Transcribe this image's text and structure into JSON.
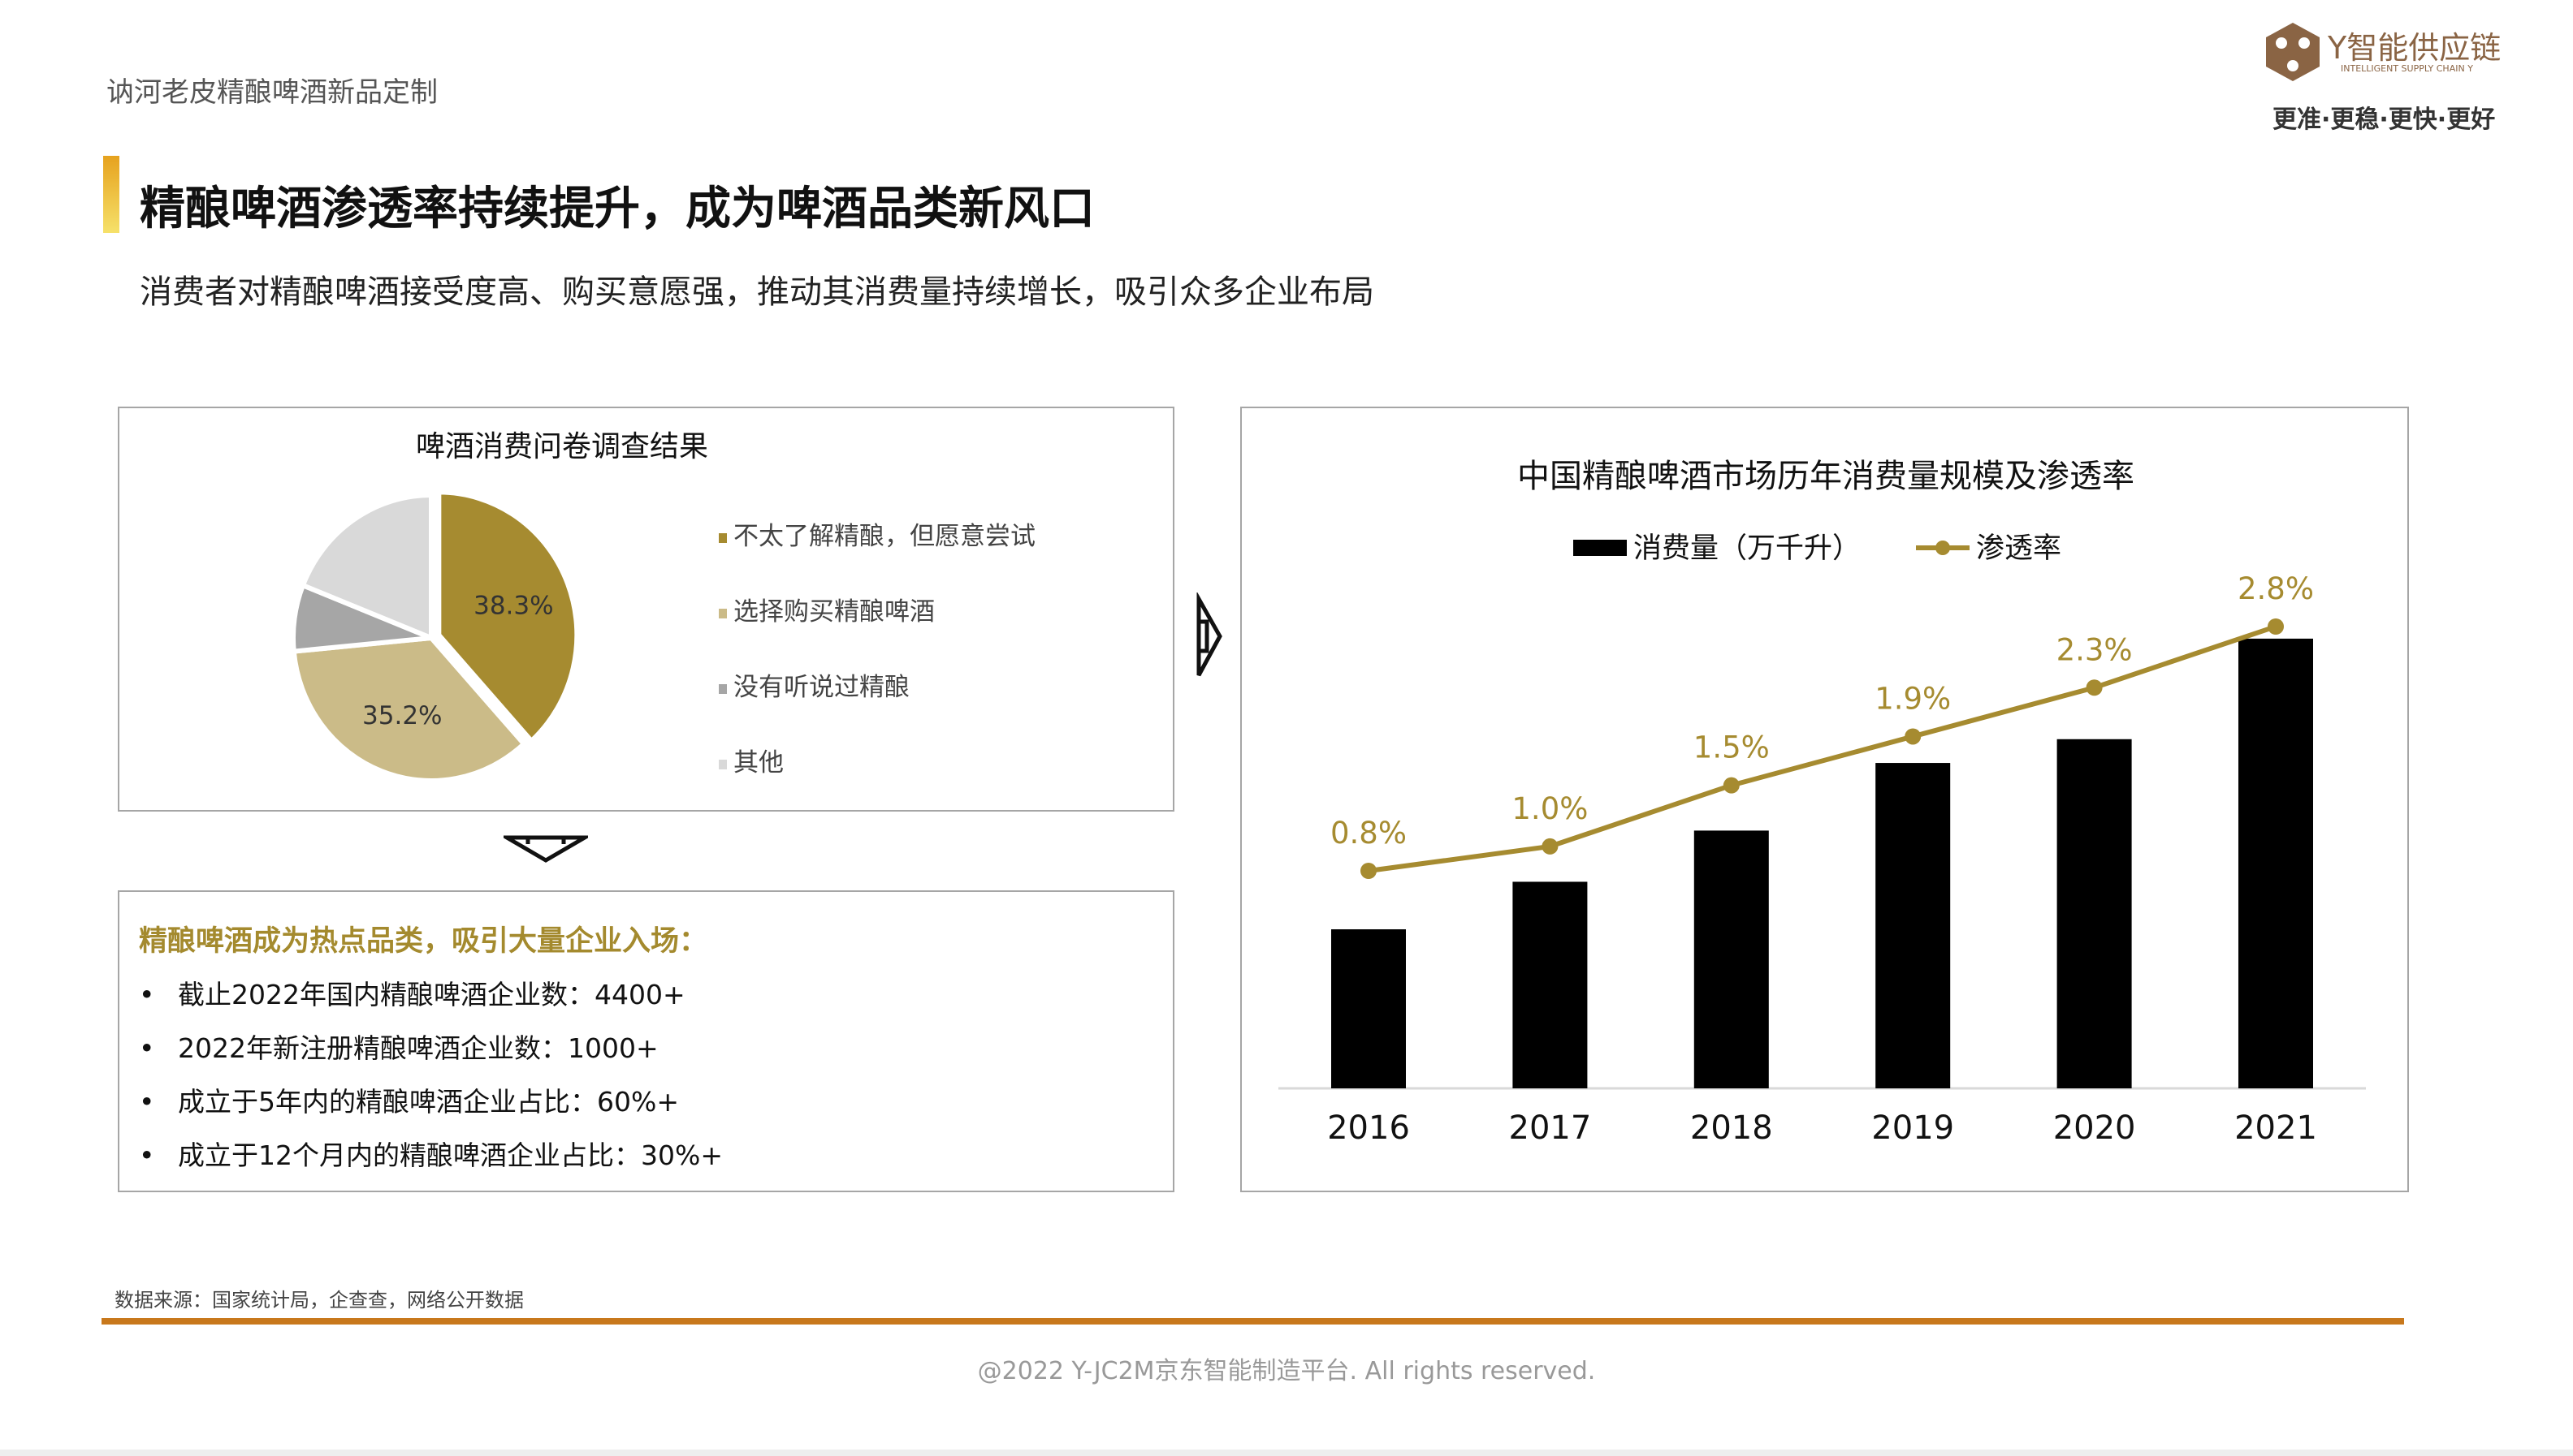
{
  "doc_title": "讷河老皮精酿啤酒新品定制",
  "logo": {
    "name": "Y智能供应链",
    "en": "INTELLIGENT SUPPLY CHAIN Y",
    "tagline": "更准·更稳·更快·更好",
    "color": "#8a6444"
  },
  "heading": "精酿啤酒渗透率持续提升，成为啤酒品类新风口",
  "subtitle": "消费者对精酿啤酒接受度高、购买意愿强，推动其消费量持续增长，吸引众多企业布局",
  "highlights": {
    "title": "精酿啤酒成为热点品类，吸引大量企业入场：",
    "bullet": "•",
    "items": [
      "截止2022年国内精酿啤酒企业数：4400+",
      "2022年新注册精酿啤酒企业数：1000+",
      "成立于5年内的精酿啤酒企业占比：60%+",
      "成立于12个月内的精酿啤酒企业占比：30%+"
    ]
  },
  "source": "数据来源：国家统计局，企查查，网络公开数据",
  "copyright": "@2022 Y-JC2M京东智能制造平台. All rights reserved.",
  "chart_data": [
    {
      "type": "pie",
      "title": "啤酒消费问卷调查结果",
      "labels": [
        "不太了解精酿，但愿意尝试",
        "选择购买精酿啤酒",
        "没有听说过精酿",
        "其他"
      ],
      "values": [
        38.3,
        35.2,
        7.5,
        19.0
      ],
      "data_labels": [
        "38.3%",
        "35.2%",
        "",
        ""
      ],
      "colors": [
        "#a68b30",
        "#cbbb88",
        "#a6a6a6",
        "#d9d9d9"
      ],
      "legend": "right"
    },
    {
      "type": "bar+line",
      "title": "中国精酿啤酒市场历年消费量规模及渗透率",
      "categories": [
        "2016",
        "2017",
        "2018",
        "2019",
        "2020",
        "2021"
      ],
      "series": [
        {
          "name": "消费量（万千升）",
          "type": "bar",
          "values": [
            8.7,
            11.3,
            14.1,
            17.8,
            19.1,
            24.6
          ],
          "color": "#000000"
        },
        {
          "name": "渗透率",
          "type": "line",
          "values": [
            0.8,
            1.0,
            1.5,
            1.9,
            2.3,
            2.8
          ],
          "labels": [
            "0.8%",
            "1.0%",
            "1.5%",
            "1.9%",
            "2.3%",
            "2.8%"
          ],
          "color": "#a68b30"
        }
      ],
      "legend": "top",
      "grid": false
    }
  ]
}
